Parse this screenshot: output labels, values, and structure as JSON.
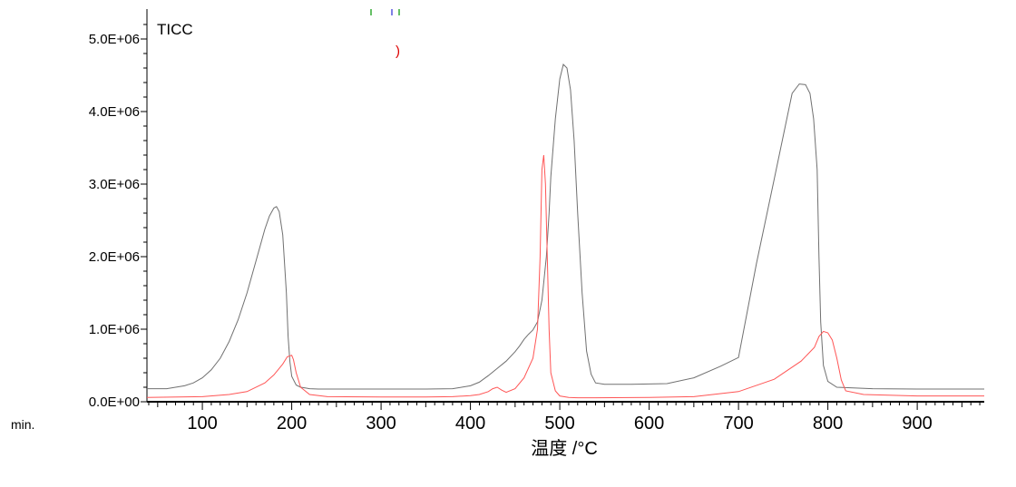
{
  "chart_data": {
    "type": "line",
    "title": "TICC",
    "xlabel": "温度 /°C",
    "ylabel": "",
    "unit_label": "min.",
    "xlim": [
      38,
      975
    ],
    "ylim": [
      0,
      5200000
    ],
    "x_ticks": [
      100,
      200,
      300,
      400,
      500,
      600,
      700,
      800,
      900
    ],
    "x_tick_labels": [
      "100",
      "200",
      "300",
      "400",
      "500",
      "600",
      "700",
      "800",
      "900"
    ],
    "y_ticks": [
      0,
      1000000,
      2000000,
      3000000,
      4000000,
      5000000
    ],
    "y_tick_labels": [
      "0.0E+00",
      "1.0E+06",
      "2.0E+06",
      "3.0E+06",
      "4.0E+06",
      "5.0E+06"
    ],
    "grid": false,
    "legend": "none",
    "series": [
      {
        "color": "#707070",
        "x": [
          38,
          60,
          70,
          80,
          90,
          100,
          110,
          120,
          130,
          140,
          150,
          160,
          170,
          175,
          180,
          183,
          186,
          190,
          194,
          196,
          198,
          200,
          205,
          210,
          215,
          220,
          230,
          250,
          300,
          350,
          380,
          400,
          410,
          420,
          430,
          440,
          450,
          455,
          460,
          465,
          470,
          475,
          480,
          485,
          488,
          490,
          495,
          500,
          504,
          508,
          512,
          516,
          520,
          525,
          530,
          535,
          540,
          550,
          580,
          620,
          650,
          680,
          700,
          720,
          740,
          760,
          768,
          775,
          780,
          784,
          788,
          790,
          792,
          795,
          800,
          810,
          850,
          900,
          950,
          975
        ],
        "y": [
          180000,
          180000,
          200000,
          220000,
          260000,
          330000,
          440000,
          600000,
          830000,
          1130000,
          1500000,
          1940000,
          2380000,
          2560000,
          2670000,
          2690000,
          2620000,
          2300000,
          1500000,
          900000,
          550000,
          350000,
          230000,
          200000,
          190000,
          180000,
          175000,
          175000,
          175000,
          175000,
          180000,
          220000,
          270000,
          360000,
          460000,
          560000,
          690000,
          770000,
          860000,
          930000,
          990000,
          1100000,
          1400000,
          2000000,
          2600000,
          3100000,
          3900000,
          4450000,
          4650000,
          4600000,
          4300000,
          3600000,
          2600000,
          1500000,
          700000,
          380000,
          260000,
          240000,
          240000,
          250000,
          330000,
          490000,
          610000,
          1900000,
          3070000,
          4250000,
          4380000,
          4370000,
          4250000,
          3900000,
          3200000,
          2000000,
          1100000,
          500000,
          280000,
          200000,
          180000,
          175000,
          175000,
          175000
        ]
      },
      {
        "color": "#ff5555",
        "x": [
          38,
          100,
          130,
          150,
          170,
          180,
          190,
          195,
          200,
          202,
          205,
          210,
          220,
          240,
          300,
          350,
          380,
          400,
          410,
          420,
          425,
          430,
          435,
          440,
          450,
          460,
          470,
          475,
          478,
          480,
          482,
          484,
          486,
          488,
          490,
          495,
          500,
          510,
          520,
          540,
          600,
          650,
          700,
          740,
          770,
          785,
          790,
          795,
          800,
          805,
          810,
          815,
          820,
          840,
          900,
          975
        ],
        "y": [
          60000,
          70000,
          100000,
          140000,
          260000,
          370000,
          520000,
          620000,
          640000,
          580000,
          400000,
          200000,
          100000,
          70000,
          65000,
          65000,
          70000,
          85000,
          100000,
          140000,
          180000,
          200000,
          160000,
          130000,
          180000,
          330000,
          600000,
          1000000,
          2000000,
          3200000,
          3400000,
          3000000,
          2000000,
          1000000,
          400000,
          150000,
          80000,
          60000,
          55000,
          55000,
          60000,
          70000,
          140000,
          310000,
          560000,
          750000,
          900000,
          970000,
          950000,
          850000,
          600000,
          300000,
          150000,
          100000,
          80000,
          80000
        ]
      }
    ]
  },
  "marker_colors": [
    "#33aa33",
    "#5555dd",
    "#33aa33"
  ],
  "marker_glyph_color": "#dd0000"
}
